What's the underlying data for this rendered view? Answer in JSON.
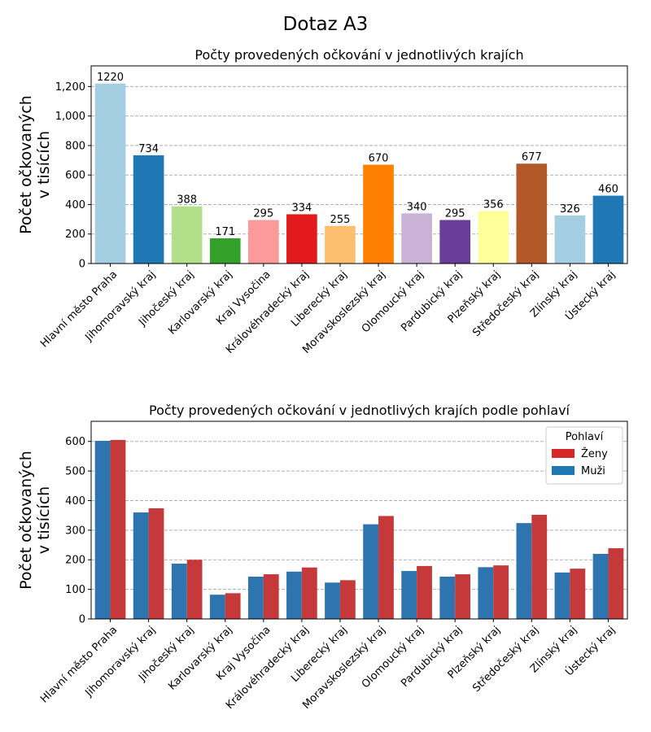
{
  "suptitle": "Dotaz A3",
  "chart_data": [
    {
      "type": "bar",
      "title": "Počty provedených očkování v jednotlivých krajích",
      "ylabel_line1": "Počet očkovaných",
      "ylabel_line2": "v tisících",
      "xlabel": "",
      "ylim": [
        0,
        1340
      ],
      "yticks": [
        0,
        200,
        400,
        600,
        800,
        1000,
        1200
      ],
      "ytick_labels": [
        "0",
        "200",
        "400",
        "600",
        "800",
        "1,000",
        "1,200"
      ],
      "grid": "y-dashed",
      "categories": [
        "Hlavní město Praha",
        "Jihomoravský kraj",
        "Jihočeský kraj",
        "Karlovarský kraj",
        "Kraj Vysočina",
        "Královéhradecký kraj",
        "Liberecký kraj",
        "Moravskoslezský kraj",
        "Olomoucký kraj",
        "Pardubický kraj",
        "Plzeňský kraj",
        "Středočeský kraj",
        "Zlínský kraj",
        "Ústecký kraj"
      ],
      "values": [
        1220,
        734,
        388,
        171,
        295,
        334,
        255,
        670,
        340,
        295,
        356,
        677,
        326,
        460
      ],
      "data_labels": [
        "1220",
        "734",
        "388",
        "171",
        "295",
        "334",
        "255",
        "670",
        "340",
        "295",
        "356",
        "677",
        "326",
        "460"
      ],
      "colors": [
        "#a6cee3",
        "#1f78b4",
        "#b2df8a",
        "#33a02c",
        "#fb9a99",
        "#e31a1c",
        "#fdbf6f",
        "#ff7f00",
        "#cab2d6",
        "#6a3d9a",
        "#ffff99",
        "#b15928",
        "#a6cee3",
        "#1f78b4"
      ]
    },
    {
      "type": "bar",
      "title": "Počty provedených očkování v jednotlivých krajích podle pohlaví",
      "ylabel_line1": "Počet očkovaných",
      "ylabel_line2": "v tisících",
      "xlabel": "",
      "ylim": [
        0,
        668
      ],
      "yticks": [
        0,
        100,
        200,
        300,
        400,
        500,
        600
      ],
      "ytick_labels": [
        "0",
        "100",
        "200",
        "300",
        "400",
        "500",
        "600"
      ],
      "grid": "y-dashed",
      "legend_position": "top-right",
      "legend_title": "Pohlaví",
      "categories": [
        "Hlavní město Praha",
        "Jihomoravský kraj",
        "Jihočeský kraj",
        "Karlovarský kraj",
        "Kraj Vysočina",
        "Královéhradecký kraj",
        "Liberecký kraj",
        "Moravskoslezský kraj",
        "Olomoucký kraj",
        "Pardubický kraj",
        "Plzeňský kraj",
        "Středočeský kraj",
        "Zlínský kraj",
        "Ústecký kraj"
      ],
      "series": [
        {
          "name": "Muži",
          "color": "#2e75b0",
          "values": [
            602,
            360,
            187,
            82,
            143,
            160,
            123,
            320,
            162,
            143,
            175,
            324,
            157,
            220
          ]
        },
        {
          "name": "Ženy",
          "color": "#c6393b",
          "values": [
            605,
            374,
            200,
            87,
            151,
            174,
            131,
            348,
            179,
            151,
            181,
            352,
            170,
            239
          ]
        }
      ],
      "legend_entries": [
        {
          "name": "Ženy",
          "color": "#d62728"
        },
        {
          "name": "Muži",
          "color": "#1f77b4"
        }
      ]
    }
  ]
}
